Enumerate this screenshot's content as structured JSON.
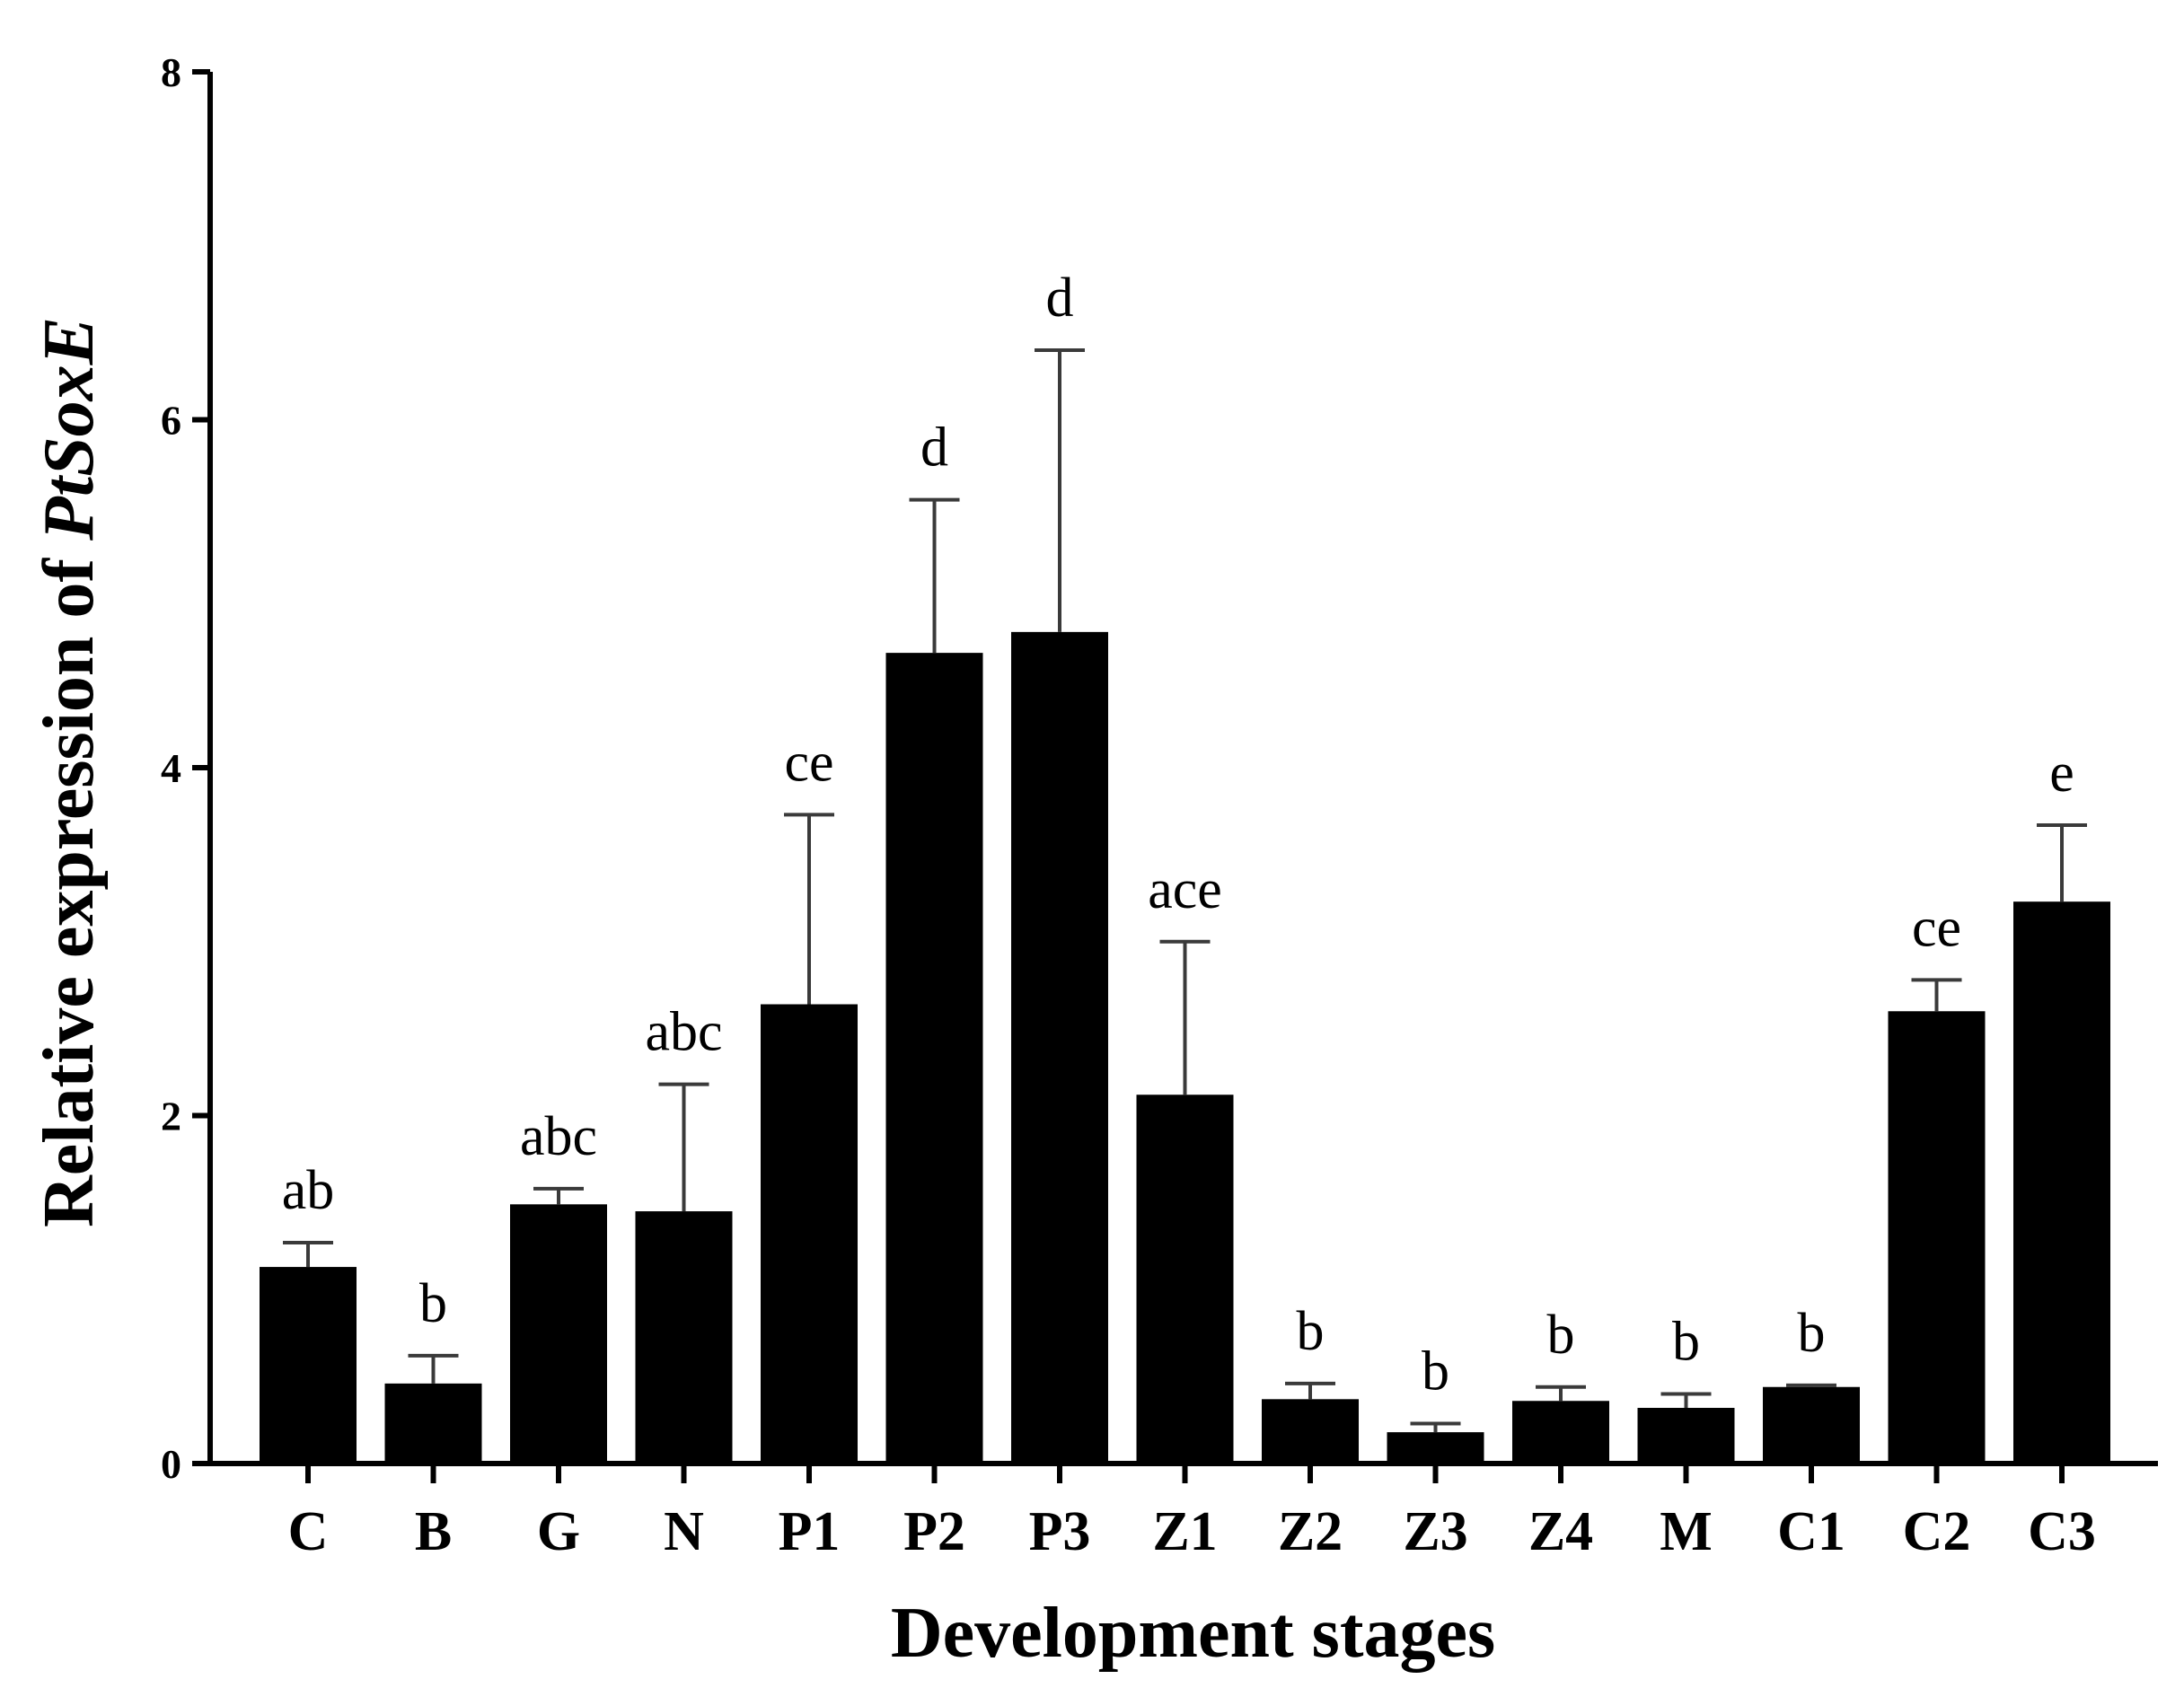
{
  "chart_data": {
    "type": "bar",
    "title": "",
    "xlabel": "Development stages",
    "ylabel": {
      "prefix": "Relative expression of ",
      "gene": "PtSoxE"
    },
    "ylim": [
      0,
      8
    ],
    "yticks": [
      0,
      2,
      4,
      6,
      8
    ],
    "grid": false,
    "bar_color": "#000000",
    "error_bar_color": "#3a3a3a",
    "categories": [
      "C",
      "B",
      "G",
      "N",
      "P1",
      "P2",
      "P3",
      "Z1",
      "Z2",
      "Z3",
      "Z4",
      "M",
      "C1",
      "C2",
      "C3"
    ],
    "values": [
      1.13,
      0.46,
      1.49,
      1.45,
      2.64,
      4.66,
      4.78,
      2.12,
      0.37,
      0.18,
      0.36,
      0.32,
      0.44,
      2.6,
      3.23
    ],
    "error_upper": [
      1.27,
      0.62,
      1.58,
      2.18,
      3.73,
      5.54,
      6.4,
      3.0,
      0.46,
      0.23,
      0.44,
      0.4,
      0.45,
      2.78,
      3.67
    ],
    "significance_labels": [
      "ab",
      "b",
      "abc",
      "abc",
      "ce",
      "d",
      "d",
      "ace",
      "b",
      "b",
      "b",
      "b",
      "b",
      "ce",
      "e"
    ]
  }
}
